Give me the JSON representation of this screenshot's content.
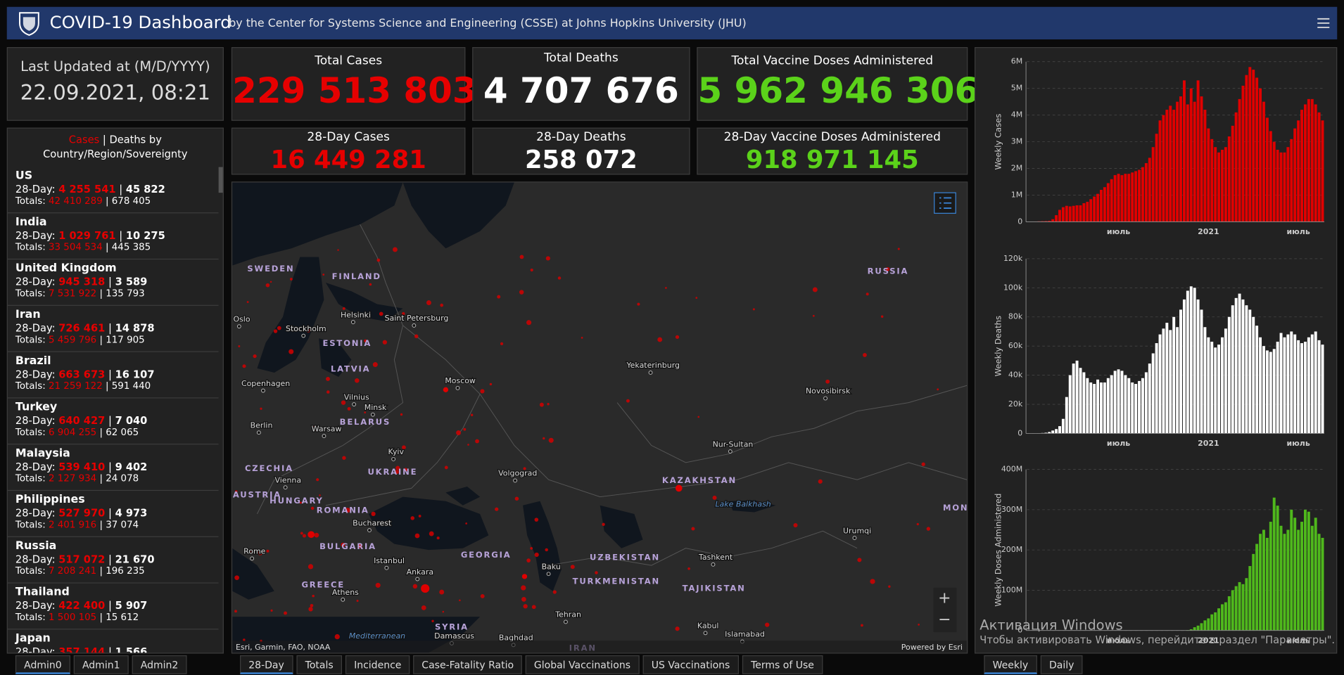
{
  "header": {
    "title": "COVID-19 Dashboard",
    "subtitle": "by the Center for Systems Science and Engineering (CSSE) at Johns Hopkins University (JHU)"
  },
  "last_updated": {
    "label": "Last Updated at (M/D/YYYY)",
    "value": "22.09.2021, 08:21"
  },
  "totals": [
    {
      "label": "Total Cases",
      "value": "229 513 803"
    },
    {
      "label": "Total Deaths",
      "value": "4 707 676"
    },
    {
      "label": "Total Vaccine Doses Administered",
      "value": "5 962 946 306"
    }
  ],
  "totals_28day": [
    {
      "label": "28-Day Cases",
      "value": "16 449 281"
    },
    {
      "label": "28-Day Deaths",
      "value": "258 072"
    },
    {
      "label": "28-Day Vaccine Doses Administered",
      "value": "918 971 145"
    }
  ],
  "country_list": {
    "title_cases": "Cases",
    "separator": "|",
    "title_deaths": "Deaths by",
    "title_rest": "Country/Region/Sovereignty",
    "day_prefix": "28-Day:",
    "totals_prefix": "Totals:",
    "items": [
      {
        "name": "US",
        "cases_28": "4 255 541",
        "deaths_28": "45 822",
        "cases_total": "42 410 289",
        "deaths_total": "678 405"
      },
      {
        "name": "India",
        "cases_28": "1 029 761",
        "deaths_28": "10 275",
        "cases_total": "33 504 534",
        "deaths_total": "445 385"
      },
      {
        "name": "United Kingdom",
        "cases_28": "945 318",
        "deaths_28": "3 589",
        "cases_total": "7 531 922",
        "deaths_total": "135 793"
      },
      {
        "name": "Iran",
        "cases_28": "726 461",
        "deaths_28": "14 878",
        "cases_total": "5 459 796",
        "deaths_total": "117 905"
      },
      {
        "name": "Brazil",
        "cases_28": "663 673",
        "deaths_28": "16 107",
        "cases_total": "21 259 122",
        "deaths_total": "591 440"
      },
      {
        "name": "Turkey",
        "cases_28": "640 427",
        "deaths_28": "7 040",
        "cases_total": "6 904 255",
        "deaths_total": "62 065"
      },
      {
        "name": "Malaysia",
        "cases_28": "539 410",
        "deaths_28": "9 402",
        "cases_total": "2 127 934",
        "deaths_total": "24 078"
      },
      {
        "name": "Philippines",
        "cases_28": "527 970",
        "deaths_28": "4 973",
        "cases_total": "2 401 916",
        "deaths_total": "37 074"
      },
      {
        "name": "Russia",
        "cases_28": "517 072",
        "deaths_28": "21 670",
        "cases_total": "7 208 241",
        "deaths_total": "196 235"
      },
      {
        "name": "Thailand",
        "cases_28": "422 400",
        "deaths_28": "5 907",
        "cases_total": "1 500 105",
        "deaths_total": "15 612"
      },
      {
        "name": "Japan",
        "cases_28": "357 144",
        "deaths_28": "1 566"
      }
    ]
  },
  "map": {
    "labels": [
      "SWEDEN",
      "FINLAND",
      "RUSSIA",
      "Oslo",
      "Helsinki",
      "Saint Petersburg",
      "Stockholm",
      "ESTONIA",
      "LATVIA",
      "Moscow",
      "Yekaterinburg",
      "Novosibirsk",
      "Copenhagen",
      "Vilnius",
      "Minsk",
      "BELARUS",
      "Berlin",
      "Warsaw",
      "Nur-Sultan",
      "Kyiv",
      "CZECHIA",
      "UKRAINE",
      "Volgograd",
      "KAZAKHSTAN",
      "Vienna",
      "AUSTRIA",
      "HUNGARY",
      "Lake Balkhash",
      "ROMANIA",
      "Bucharest",
      "BULGARIA",
      "Rome",
      "GEORGIA",
      "Istanbul",
      "UZBEKISTAN",
      "Tashkent",
      "Baku",
      "Urumqi",
      "Ankara",
      "GREECE",
      "Athens",
      "TURKMENISTAN",
      "TAJIKISTAN",
      "Tehran",
      "Kabul",
      "SYRIA",
      "Damascus",
      "Baghdad",
      "Islamabad",
      "Mediterranean",
      "MON",
      "IRAN"
    ],
    "attribution": "Esri, Garmin, FAO, NOAA",
    "powered": "Powered by Esri",
    "zoom_in": "+",
    "zoom_out": "−"
  },
  "chart_data": [
    {
      "type": "bar",
      "y_label": "Weekly Cases",
      "color": "#e00000",
      "categories": [
        null,
        null,
        null,
        null,
        null,
        null,
        null,
        null,
        null,
        null,
        null,
        null,
        null,
        null,
        null,
        null,
        null,
        null,
        null,
        null,
        null,
        null,
        null,
        null,
        null,
        null,
        "июль",
        null,
        null,
        null,
        null,
        null,
        null,
        null,
        null,
        null,
        null,
        null,
        null,
        null,
        null,
        null,
        null,
        null,
        null,
        null,
        null,
        null,
        null,
        null,
        null,
        null,
        "2021",
        null,
        null,
        null,
        null,
        null,
        null,
        null,
        null,
        null,
        null,
        null,
        null,
        null,
        null,
        null,
        null,
        null,
        null,
        null,
        null,
        null,
        null,
        null,
        null,
        null,
        "июль",
        null,
        null,
        null,
        null,
        null,
        null,
        null
      ],
      "values": [
        5000,
        10000,
        15000,
        20000,
        25000,
        30000,
        40000,
        100000,
        250000,
        450000,
        550000,
        600000,
        580000,
        600000,
        620000,
        620000,
        700000,
        750000,
        850000,
        950000,
        1050000,
        1200000,
        1300000,
        1450000,
        1600000,
        1750000,
        1800000,
        1750000,
        1800000,
        1800000,
        1850000,
        1900000,
        1950000,
        2050000,
        2200000,
        2400000,
        2800000,
        3300000,
        3800000,
        4000000,
        4200000,
        4350000,
        4200000,
        4500000,
        4700000,
        5300000,
        4400000,
        5000000,
        4500000,
        5300000,
        4700000,
        4200000,
        3500000,
        3100000,
        2800000,
        2600000,
        2700000,
        2800000,
        3200000,
        3600000,
        4100000,
        4600000,
        5100000,
        5500000,
        5800000,
        5700000,
        5400000,
        5000000,
        4500000,
        3900000,
        3400000,
        3000000,
        2700000,
        2600000,
        2600000,
        2800000,
        3100000,
        3500000,
        3800000,
        4200000,
        4400000,
        4600000,
        4600000,
        4400000,
        4100000,
        3800000
      ],
      "ylim": [
        0,
        6000000
      ],
      "yticks": [
        0,
        {
          "value": 1000000,
          "label": "1M"
        },
        {
          "value": 2000000,
          "label": "2M"
        },
        {
          "value": 3000000,
          "label": "3M"
        },
        {
          "value": 4000000,
          "label": "4M"
        },
        {
          "value": 5000000,
          "label": "5M"
        },
        {
          "value": 6000000,
          "label": "6M"
        }
      ],
      "grid": true
    },
    {
      "type": "bar",
      "y_label": "Weekly Deaths",
      "color": "#ffffff",
      "categories": [
        null,
        null,
        null,
        null,
        null,
        null,
        null,
        null,
        null,
        null,
        null,
        null,
        null,
        null,
        null,
        null,
        null,
        null,
        null,
        null,
        null,
        null,
        null,
        null,
        null,
        null,
        "июль",
        null,
        null,
        null,
        null,
        null,
        null,
        null,
        null,
        null,
        null,
        null,
        null,
        null,
        null,
        null,
        null,
        null,
        null,
        null,
        null,
        null,
        null,
        null,
        null,
        null,
        "2021",
        null,
        null,
        null,
        null,
        null,
        null,
        null,
        null,
        null,
        null,
        null,
        null,
        null,
        null,
        null,
        null,
        null,
        null,
        null,
        null,
        null,
        null,
        null,
        null,
        null,
        "июль",
        null,
        null,
        null,
        null,
        null,
        null,
        null
      ],
      "values": [
        0,
        0,
        100,
        200,
        300,
        500,
        1000,
        2000,
        3000,
        5000,
        10000,
        25000,
        40000,
        48000,
        50000,
        45000,
        42000,
        38000,
        35000,
        34000,
        37000,
        35000,
        35000,
        38000,
        40000,
        43000,
        44000,
        43000,
        40000,
        38000,
        35000,
        34000,
        36000,
        38000,
        42000,
        48000,
        55000,
        62000,
        68000,
        72000,
        76000,
        71000,
        80000,
        73000,
        85000,
        92000,
        98000,
        101000,
        100000,
        92000,
        85000,
        73000,
        66000,
        63000,
        59000,
        61000,
        66000,
        72000,
        80000,
        88000,
        93000,
        96000,
        92000,
        88000,
        85000,
        80000,
        74000,
        66000,
        60000,
        57000,
        56000,
        58000,
        63000,
        69000,
        66000,
        68000,
        70000,
        68000,
        64000,
        62000,
        63000,
        66000,
        68000,
        70000,
        64000,
        61000
      ],
      "ylim": [
        0,
        120000
      ],
      "yticks": [
        0,
        {
          "value": 20000,
          "label": "20k"
        },
        {
          "value": 40000,
          "label": "40k"
        },
        {
          "value": 60000,
          "label": "60k"
        },
        {
          "value": 80000,
          "label": "80k"
        },
        {
          "value": 100000,
          "label": "100k"
        },
        {
          "value": 120000,
          "label": "120k"
        }
      ],
      "grid": true
    },
    {
      "type": "bar",
      "y_label": "Weekly Doses Administered",
      "color": "#4fb81c",
      "categories": [
        null,
        null,
        null,
        null,
        null,
        null,
        null,
        null,
        null,
        null,
        null,
        null,
        null,
        null,
        null,
        null,
        null,
        null,
        null,
        null,
        null,
        null,
        null,
        null,
        null,
        null,
        "июль",
        null,
        null,
        null,
        null,
        null,
        null,
        null,
        null,
        null,
        null,
        null,
        null,
        null,
        null,
        null,
        null,
        null,
        null,
        null,
        null,
        null,
        null,
        null,
        null,
        null,
        "2021",
        null,
        null,
        null,
        null,
        null,
        null,
        null,
        null,
        null,
        null,
        null,
        null,
        null,
        null,
        null,
        null,
        null,
        null,
        null,
        null,
        null,
        null,
        null,
        null,
        null,
        "июль",
        null,
        null,
        null,
        null,
        null,
        null,
        null
      ],
      "values": [
        0,
        0,
        0,
        0,
        0,
        0,
        0,
        0,
        0,
        0,
        0,
        0,
        0,
        0,
        0,
        0,
        0,
        0,
        0,
        0,
        0,
        0,
        0,
        0,
        0,
        0,
        0,
        0,
        0,
        0,
        0,
        0,
        0,
        0,
        0,
        0,
        0,
        0,
        0,
        0,
        0,
        0,
        0,
        0,
        0,
        0,
        1000000,
        3000000,
        8000000,
        12000000,
        18000000,
        25000000,
        30000000,
        40000000,
        45000000,
        55000000,
        65000000,
        70000000,
        85000000,
        100000000,
        110000000,
        120000000,
        115000000,
        130000000,
        160000000,
        190000000,
        215000000,
        240000000,
        250000000,
        230000000,
        270000000,
        330000000,
        310000000,
        260000000,
        240000000,
        250000000,
        300000000,
        280000000,
        250000000,
        270000000,
        300000000,
        295000000,
        260000000,
        280000000,
        240000000,
        230000000
      ],
      "ylim": [
        0,
        400000000
      ],
      "yticks": [
        0,
        {
          "value": 100000000,
          "label": "100M"
        },
        {
          "value": 200000000,
          "label": "200M"
        },
        {
          "value": 300000000,
          "label": "300M"
        },
        {
          "value": 400000000,
          "label": "400M"
        }
      ],
      "grid": true
    }
  ],
  "watermark": {
    "title": "Активация Windows",
    "text": "Чтобы активировать Windows, перейдите в раздел \"Параметры\"."
  },
  "tabs": {
    "left": [
      "Admin0",
      "Admin1",
      "Admin2"
    ],
    "middle": [
      "28-Day",
      "Totals",
      "Incidence",
      "Case-Fatality Ratio",
      "Global Vaccinations",
      "US Vaccinations",
      "Terms of Use"
    ],
    "right": [
      "Weekly",
      "Daily"
    ]
  }
}
